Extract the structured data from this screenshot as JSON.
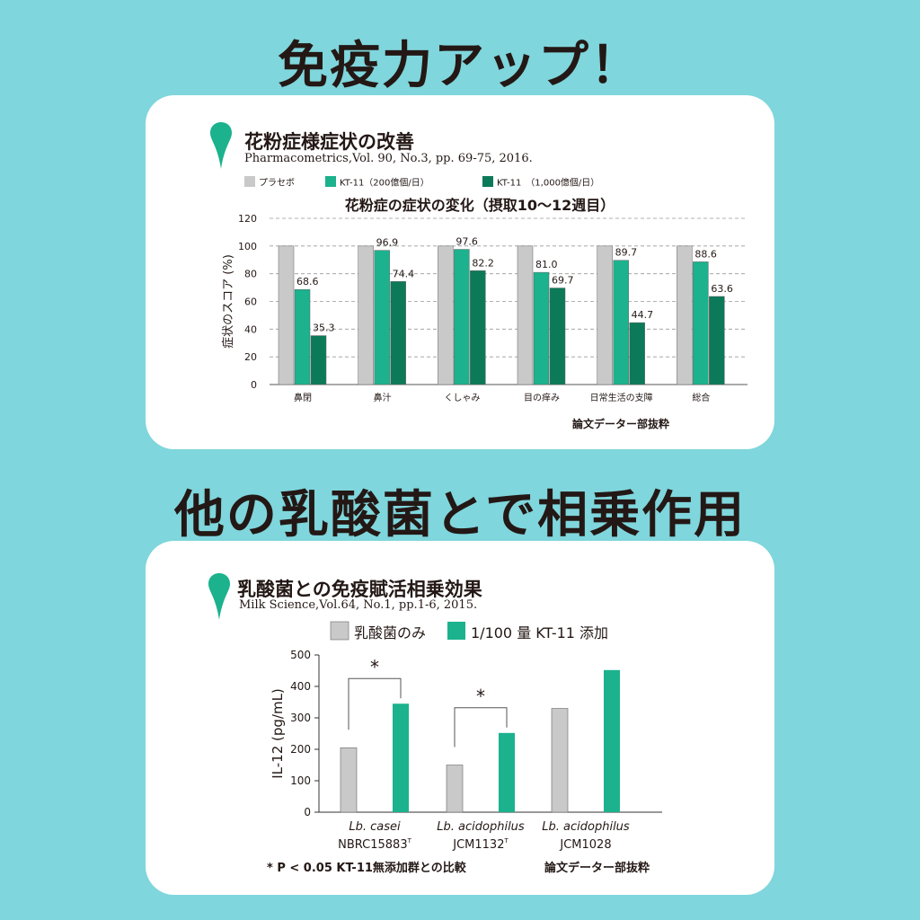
{
  "page": {
    "heading_1": "免疫力アップ！",
    "heading_2": "他の乳酸菌とで相乗作用"
  },
  "colors": {
    "background": "#7fd6dc",
    "card": "#ffffff",
    "placebo": "#c9c9c9",
    "kt11_low": "#1bb28d",
    "kt11_high": "#0c7a58",
    "lactic_only": "#c9c9c9",
    "kt11_added": "#1bb28d",
    "pin": "#1bb28d"
  },
  "icons": [
    "map-pin-icon",
    "map-pin-icon"
  ],
  "chart_data": [
    {
      "type": "bar",
      "heading": "花粉症様症状の改善",
      "source": "Pharmacometrics,Vol. 90, No.3, pp. 69-75, 2016.",
      "title": "花粉症の症状の変化（摂取10～12週目）",
      "ylabel": "症状のスコア (%)",
      "ylim": [
        0,
        120
      ],
      "yticks": [
        0,
        20,
        40,
        60,
        80,
        100,
        120
      ],
      "grid": true,
      "legend_placement": "top-left",
      "categories": [
        "鼻閉",
        "鼻汁",
        "くしゃみ",
        "目の痒み",
        "日常生活の支障",
        "総合"
      ],
      "series": [
        {
          "name": "プラセボ",
          "values": [
            100,
            100,
            100,
            100,
            100,
            100
          ],
          "labels": [
            "",
            "",
            "",
            "",
            "",
            ""
          ]
        },
        {
          "name": "KT-11（200億個/日）",
          "values": [
            68.6,
            96.9,
            97.6,
            81.0,
            89.7,
            88.6
          ],
          "labels": [
            "68.6",
            "96.9",
            "97.6",
            "81.0",
            "89.7",
            "88.6"
          ]
        },
        {
          "name": "KT-11　（1,000億個/日）",
          "values": [
            35.3,
            74.4,
            82.2,
            69.7,
            44.7,
            63.6
          ],
          "labels": [
            "35.3",
            "74.4",
            "82.2",
            "69.7",
            "44.7",
            "63.6"
          ]
        }
      ],
      "note": "論文データー部抜粋"
    },
    {
      "type": "bar",
      "heading": "乳酸菌との免疫賦活相乗効果",
      "source": "Milk Science,Vol.64, No.1, pp.1-6, 2015.",
      "ylabel": "IL-12 (pg/mL)",
      "ylim": [
        0,
        500
      ],
      "yticks": [
        0,
        100,
        200,
        300,
        400,
        500
      ],
      "grid": false,
      "legend_placement": "top",
      "categories": [
        {
          "name": "Lb. casei",
          "strain": "NBRC15883",
          "sup": "T"
        },
        {
          "name": "Lb. acidophilus",
          "strain": "JCM1132",
          "sup": "T"
        },
        {
          "name": "Lb. acidophilus",
          "strain": "JCM1028",
          "sup": ""
        }
      ],
      "series": [
        {
          "name": "乳酸菌のみ",
          "values": [
            205,
            150,
            330
          ]
        },
        {
          "name": "1/100 量 KT-11 添加",
          "values": [
            345,
            252,
            452
          ]
        }
      ],
      "significance": [
        {
          "category": 0,
          "mark": "*"
        },
        {
          "category": 1,
          "mark": "*"
        }
      ],
      "footnote": "* P < 0.05 KT-11無添加群との比較",
      "note": "論文データー部抜粋"
    }
  ]
}
